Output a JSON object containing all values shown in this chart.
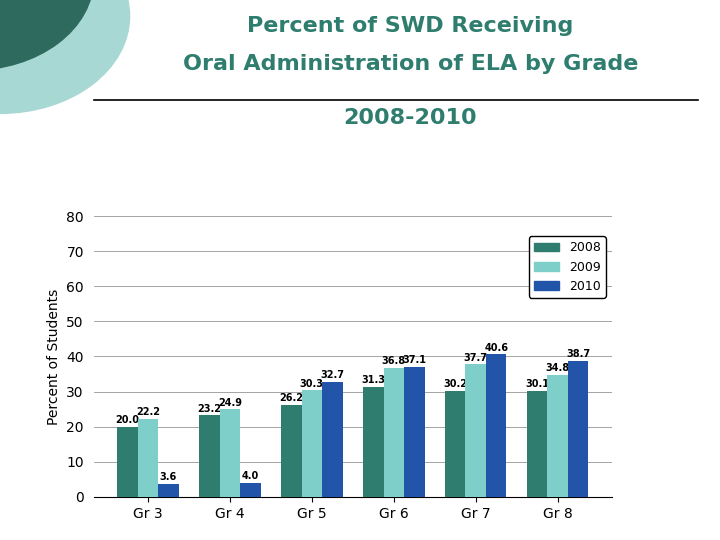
{
  "title_line1": "Percent of SWD Receiving",
  "title_line2": "Oral Administration of ELA by Grade",
  "subtitle": "2008-2010",
  "ylabel": "Percent of Students",
  "categories": [
    "Gr 3",
    "Gr 4",
    "Gr 5",
    "Gr 6",
    "Gr 7",
    "Gr 8"
  ],
  "series": {
    "2008": [
      20.0,
      23.2,
      26.2,
      31.3,
      30.2,
      30.1
    ],
    "2009": [
      22.2,
      24.9,
      30.3,
      36.8,
      37.7,
      34.8
    ],
    "2010": [
      3.6,
      4.0,
      32.7,
      37.1,
      40.6,
      38.7
    ]
  },
  "colors": {
    "2008": "#2e7d6e",
    "2009": "#7ececa",
    "2010": "#2255aa"
  },
  "ylim": [
    0,
    80
  ],
  "yticks": [
    0,
    10,
    20,
    30,
    40,
    50,
    60,
    70,
    80
  ],
  "title_color": "#2e7d6e",
  "subtitle_color": "#2e7d6e",
  "background_color": "#ffffff",
  "title_fontsize": 16,
  "subtitle_fontsize": 16,
  "bar_width": 0.25,
  "legend_labels": [
    "2008",
    "2009",
    "2010"
  ],
  "circle_dark": "#2e6b5e",
  "circle_light": "#a8d8d4"
}
